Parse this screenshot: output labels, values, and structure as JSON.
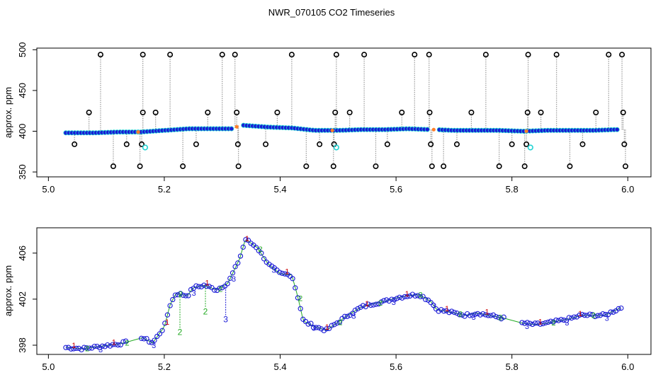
{
  "figure": {
    "title": "NWR_070105  CO2 Timeseries"
  },
  "colors": {
    "bg": "#ffffff",
    "axis": "#000000",
    "drop": "#9a9a9a",
    "outlier": "#000000",
    "flag": "#22d3d3",
    "main": "#1a1ad6",
    "orange": "#ff7f2a",
    "s1": "#cc0000",
    "s2": "#22aa22",
    "s3": "#1a1ad6"
  },
  "chart_data": [
    {
      "type": "scatter",
      "title": "",
      "xlabel": "",
      "ylabel": "approx. ppm",
      "xlim": [
        4.98,
        6.04
      ],
      "ylim": [
        344,
        502
      ],
      "xticks": [
        "5.0",
        "5.2",
        "5.4",
        "5.6",
        "5.8",
        "6.0"
      ],
      "yticks": [
        "350",
        "400",
        "450",
        "500"
      ],
      "main_series": {
        "x": [
          5.03,
          5.08,
          5.12,
          5.16,
          5.2,
          5.24,
          5.28,
          5.32,
          5.33,
          5.34,
          5.38,
          5.42,
          5.46,
          5.5,
          5.54,
          5.58,
          5.62,
          5.66,
          5.67,
          5.7,
          5.74,
          5.78,
          5.82,
          5.86,
          5.9,
          5.94,
          5.98
        ],
        "y": [
          398,
          398,
          399,
          399,
          401,
          403,
          403,
          403,
          408,
          407,
          405,
          404,
          401,
          401,
          402,
          402,
          403,
          402,
          402,
          401,
          401,
          401,
          400,
          401,
          401,
          401,
          402
        ]
      },
      "outliers": {
        "x": [
          5.045,
          5.07,
          5.09,
          5.112,
          5.135,
          5.158,
          5.161,
          5.163,
          5.163,
          5.185,
          5.21,
          5.232,
          5.255,
          5.275,
          5.3,
          5.322,
          5.325,
          5.327,
          5.328,
          5.375,
          5.395,
          5.42,
          5.445,
          5.468,
          5.492,
          5.493,
          5.495,
          5.497,
          5.52,
          5.545,
          5.565,
          5.585,
          5.61,
          5.632,
          5.657,
          5.658,
          5.66,
          5.662,
          5.682,
          5.705,
          5.73,
          5.755,
          5.778,
          5.8,
          5.822,
          5.825,
          5.827,
          5.828,
          5.85,
          5.877,
          5.9,
          5.922,
          5.945,
          5.967,
          5.99,
          5.992,
          5.994,
          5.996
        ],
        "y": [
          384,
          423,
          494,
          357,
          384,
          357,
          384,
          423,
          494,
          423,
          494,
          357,
          384,
          423,
          494,
          494,
          423,
          384,
          357,
          384,
          423,
          494,
          357,
          384,
          357,
          384,
          423,
          494,
          423,
          494,
          357,
          384,
          423,
          494,
          494,
          423,
          384,
          357,
          357,
          384,
          423,
          494,
          357,
          384,
          357,
          384,
          423,
          494,
          423,
          494,
          357,
          384,
          423,
          494,
          494,
          423,
          384,
          357
        ]
      },
      "flagged": {
        "x": [
          5.167,
          5.497,
          5.832
        ],
        "y": [
          380,
          380,
          380
        ]
      }
    },
    {
      "type": "scatter",
      "title": "",
      "xlabel": "",
      "ylabel": "approx. ppm",
      "xlim": [
        4.98,
        6.04
      ],
      "ylim": [
        397.2,
        408.2
      ],
      "xticks": [
        "5.0",
        "5.2",
        "5.4",
        "5.6",
        "5.8",
        "6.0"
      ],
      "yticks": [
        "398",
        "402",
        "406"
      ],
      "series": {
        "x": [
          5.03,
          5.06,
          5.09,
          5.12,
          5.15,
          5.16,
          5.18,
          5.2,
          5.21,
          5.22,
          5.24,
          5.25,
          5.27,
          5.29,
          5.31,
          5.33,
          5.34,
          5.36,
          5.38,
          5.4,
          5.42,
          5.43,
          5.44,
          5.46,
          5.48,
          5.5,
          5.52,
          5.54,
          5.56,
          5.58,
          5.6,
          5.62,
          5.64,
          5.66,
          5.67,
          5.7,
          5.72,
          5.74,
          5.76,
          5.78,
          5.8,
          5.81,
          5.82,
          5.84,
          5.86,
          5.88,
          5.9,
          5.92,
          5.94,
          5.96,
          5.99
        ],
        "y": [
          397.8,
          397.7,
          397.9,
          398.1,
          398.4,
          398.7,
          398.2,
          399.6,
          401.5,
          402.5,
          402.3,
          403.0,
          403.2,
          402.8,
          403.4,
          405.5,
          407.2,
          406.5,
          405.0,
          404.2,
          404.1,
          402.3,
          400.1,
          399.6,
          399.3,
          400.0,
          400.7,
          401.3,
          401.6,
          401.8,
          402.1,
          402.3,
          402.4,
          401.8,
          401.1,
          400.8,
          400.6,
          400.8,
          400.6,
          400.4,
          400.2,
          400.0,
          399.9,
          399.8,
          399.9,
          400.1,
          400.3,
          400.6,
          400.6,
          400.6,
          401.3
        ]
      },
      "dips": [
        {
          "x": 5.227,
          "y": 399.5,
          "label": "2"
        },
        {
          "x": 5.271,
          "y": 401.3,
          "label": "2"
        },
        {
          "x": 5.306,
          "y": 400.6,
          "label": "3"
        }
      ],
      "labels": [
        "1",
        "2",
        "3"
      ]
    }
  ]
}
